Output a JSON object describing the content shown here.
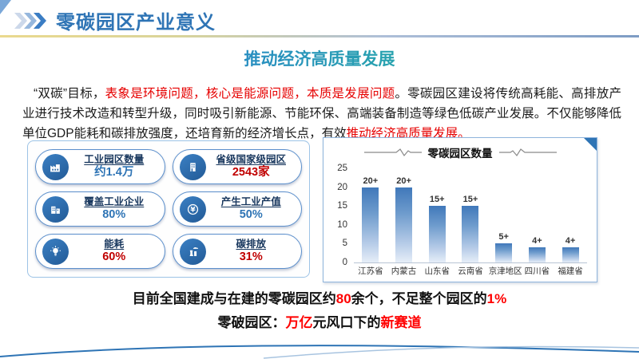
{
  "header": {
    "title": "零碳园区产业意义"
  },
  "section_heading": "推动经济高质量发展",
  "paragraph_segments": [
    {
      "text": "“双碳”目标，",
      "color": "#1a1a1a"
    },
    {
      "text": "表象是环境问题，核心是能源问题，本质是发展问题",
      "color": "#e60000"
    },
    {
      "text": "。零碳园区建设将传统高耗能、高排放产业进行技术改造和转型升级，同时吸引新能源、节能环保、高端装备制造等绿色低碳产业发展。不仅能够降低单位GDP能耗和碳排放强度，还培育新的经济增长点，有效",
      "color": "#1a1a1a"
    },
    {
      "text": "推动经济高质量发展。",
      "color": "#e60000"
    }
  ],
  "stats": {
    "items": [
      {
        "icon": "factory-icon",
        "label": "工业园区数量",
        "value": "约1.4万",
        "value_color": "#2e74b5"
      },
      {
        "icon": "government-building-icon",
        "label": "省级国家级园区",
        "value": "2543家",
        "value_color": "#c00000"
      },
      {
        "icon": "enterprise-icon",
        "label": "覆盖工业企业",
        "value": "80%",
        "value_color": "#2e74b5"
      },
      {
        "icon": "yuan-icon",
        "label": "产生工业产值",
        "value": "50%",
        "value_color": "#2e74b5"
      },
      {
        "icon": "bulb-icon",
        "label": "能耗",
        "value": "60%",
        "value_color": "#c00000"
      },
      {
        "icon": "power-plant-icon",
        "label": "碳排放",
        "value": "31%",
        "value_color": "#c00000"
      }
    ]
  },
  "chart_data": {
    "type": "bar",
    "title": "零碳园区数量",
    "categories": [
      "江苏省",
      "内蒙古",
      "山东省",
      "云南省",
      "京津地区",
      "四川省",
      "福建省"
    ],
    "values": [
      20,
      20,
      15,
      15,
      5,
      4,
      4
    ],
    "bar_labels": [
      "20+",
      "20+",
      "15+",
      "15+",
      "5+",
      "4+",
      "4+"
    ],
    "xlabel": "",
    "ylabel": "",
    "ylim": [
      0,
      25
    ],
    "yticks": [
      0,
      5,
      10,
      15,
      20,
      25
    ],
    "grid": false,
    "legend": false,
    "bar_color_top": "#4078ba",
    "bar_color_bottom": "#e6eef8"
  },
  "footer_lines": {
    "line1": [
      {
        "text": "目前全国建成与在建的零碳园区约",
        "color": "#111111"
      },
      {
        "text": "80",
        "color": "#ff0000"
      },
      {
        "text": "余个，不足整个园区的",
        "color": "#111111"
      },
      {
        "text": "1%",
        "color": "#ff0000"
      }
    ],
    "line2": [
      {
        "text": "零破园区：",
        "color": "#111111"
      },
      {
        "text": "万亿",
        "color": "#ff0000"
      },
      {
        "text": "元风口下的",
        "color": "#111111"
      },
      {
        "text": "新赛道",
        "color": "#ff0000"
      }
    ]
  },
  "colors": {
    "accent_blue": "#2e74b5",
    "paragraph_red": "#e60000",
    "value_red": "#c00000",
    "footer_red": "#ff0000"
  }
}
